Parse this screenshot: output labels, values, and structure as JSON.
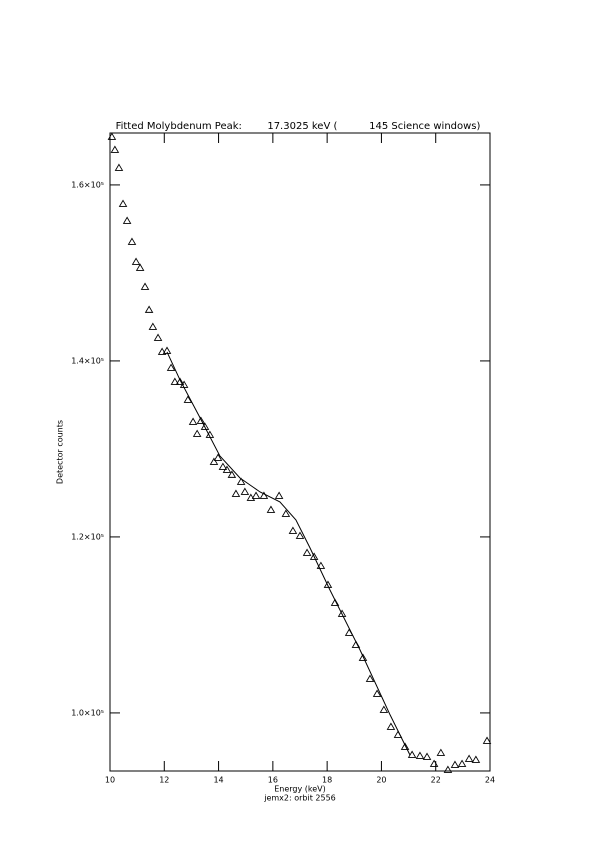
{
  "chart_data": {
    "type": "scatter",
    "title": "Fitted Molybdenum Peak:        17.3025 keV (          145 Science windows)",
    "x_label": "Energy (keV)",
    "subtitle": "jemx2: orbit 2556",
    "y_label": "Detector counts",
    "xlim": [
      10,
      24
    ],
    "ylim": [
      93400,
      165900
    ],
    "xticks": [
      10,
      12,
      14,
      16,
      18,
      20,
      22,
      24
    ],
    "yticks": [
      {
        "value": 100000,
        "label": "1.0×10⁵"
      },
      {
        "value": 120000,
        "label": "1.2×10⁵"
      },
      {
        "value": 140000,
        "label": "1.4×10⁵"
      },
      {
        "value": 160000,
        "label": "1.6×10⁵"
      }
    ],
    "series": [
      {
        "marker": "triangle",
        "color": "#000000",
        "x": [
          10.07,
          10.18,
          10.33,
          10.48,
          10.63,
          10.81,
          10.96,
          11.11,
          11.29,
          11.44,
          11.58,
          11.77,
          11.92,
          12.1,
          12.25,
          12.39,
          12.58,
          12.73,
          12.87,
          13.06,
          13.21,
          13.35,
          13.5,
          13.68,
          13.83,
          13.98,
          14.16,
          14.31,
          14.49,
          14.64,
          14.83,
          14.97,
          15.19,
          15.38,
          15.67,
          15.93,
          16.23,
          16.48,
          16.74,
          17.0,
          17.26,
          17.52,
          17.77,
          18.03,
          18.29,
          18.55,
          18.81,
          19.06,
          19.32,
          19.58,
          19.84,
          20.09,
          20.35,
          20.61,
          20.87,
          21.13,
          21.42,
          21.68,
          21.94,
          22.19,
          22.45,
          22.71,
          22.97,
          23.23,
          23.48,
          23.89
        ],
        "values": [
          165450,
          163980,
          161930,
          157840,
          155910,
          153520,
          151250,
          150570,
          148410,
          145800,
          143860,
          142610,
          141020,
          141140,
          139200,
          137610,
          137610,
          137270,
          135570,
          133070,
          131700,
          133180,
          132500,
          131590,
          128520,
          128980,
          127950,
          127610,
          127050,
          124890,
          126250,
          125110,
          124430,
          124660,
          124660,
          123070,
          124660,
          122610,
          120680,
          120110,
          118180,
          117730,
          116700,
          114550,
          112500,
          111250,
          109090,
          107730,
          106250,
          103860,
          102160,
          100340,
          98410,
          97500,
          96140,
          95230,
          95110,
          95000,
          94200,
          95450,
          93520,
          94090,
          94200,
          94770,
          94660,
          96820
        ]
      },
      {
        "marker": "line",
        "color": "#000000",
        "x": [
          12.1,
          12.58,
          13.32,
          14.05,
          14.79,
          15.53,
          16.26,
          16.85,
          17.37,
          18.1,
          19.21,
          20.32,
          21.05
        ],
        "values": [
          141020,
          137840,
          133520,
          129200,
          126700,
          125110,
          123980,
          121930,
          118750,
          113980,
          107160,
          99770,
          95230
        ]
      }
    ]
  }
}
